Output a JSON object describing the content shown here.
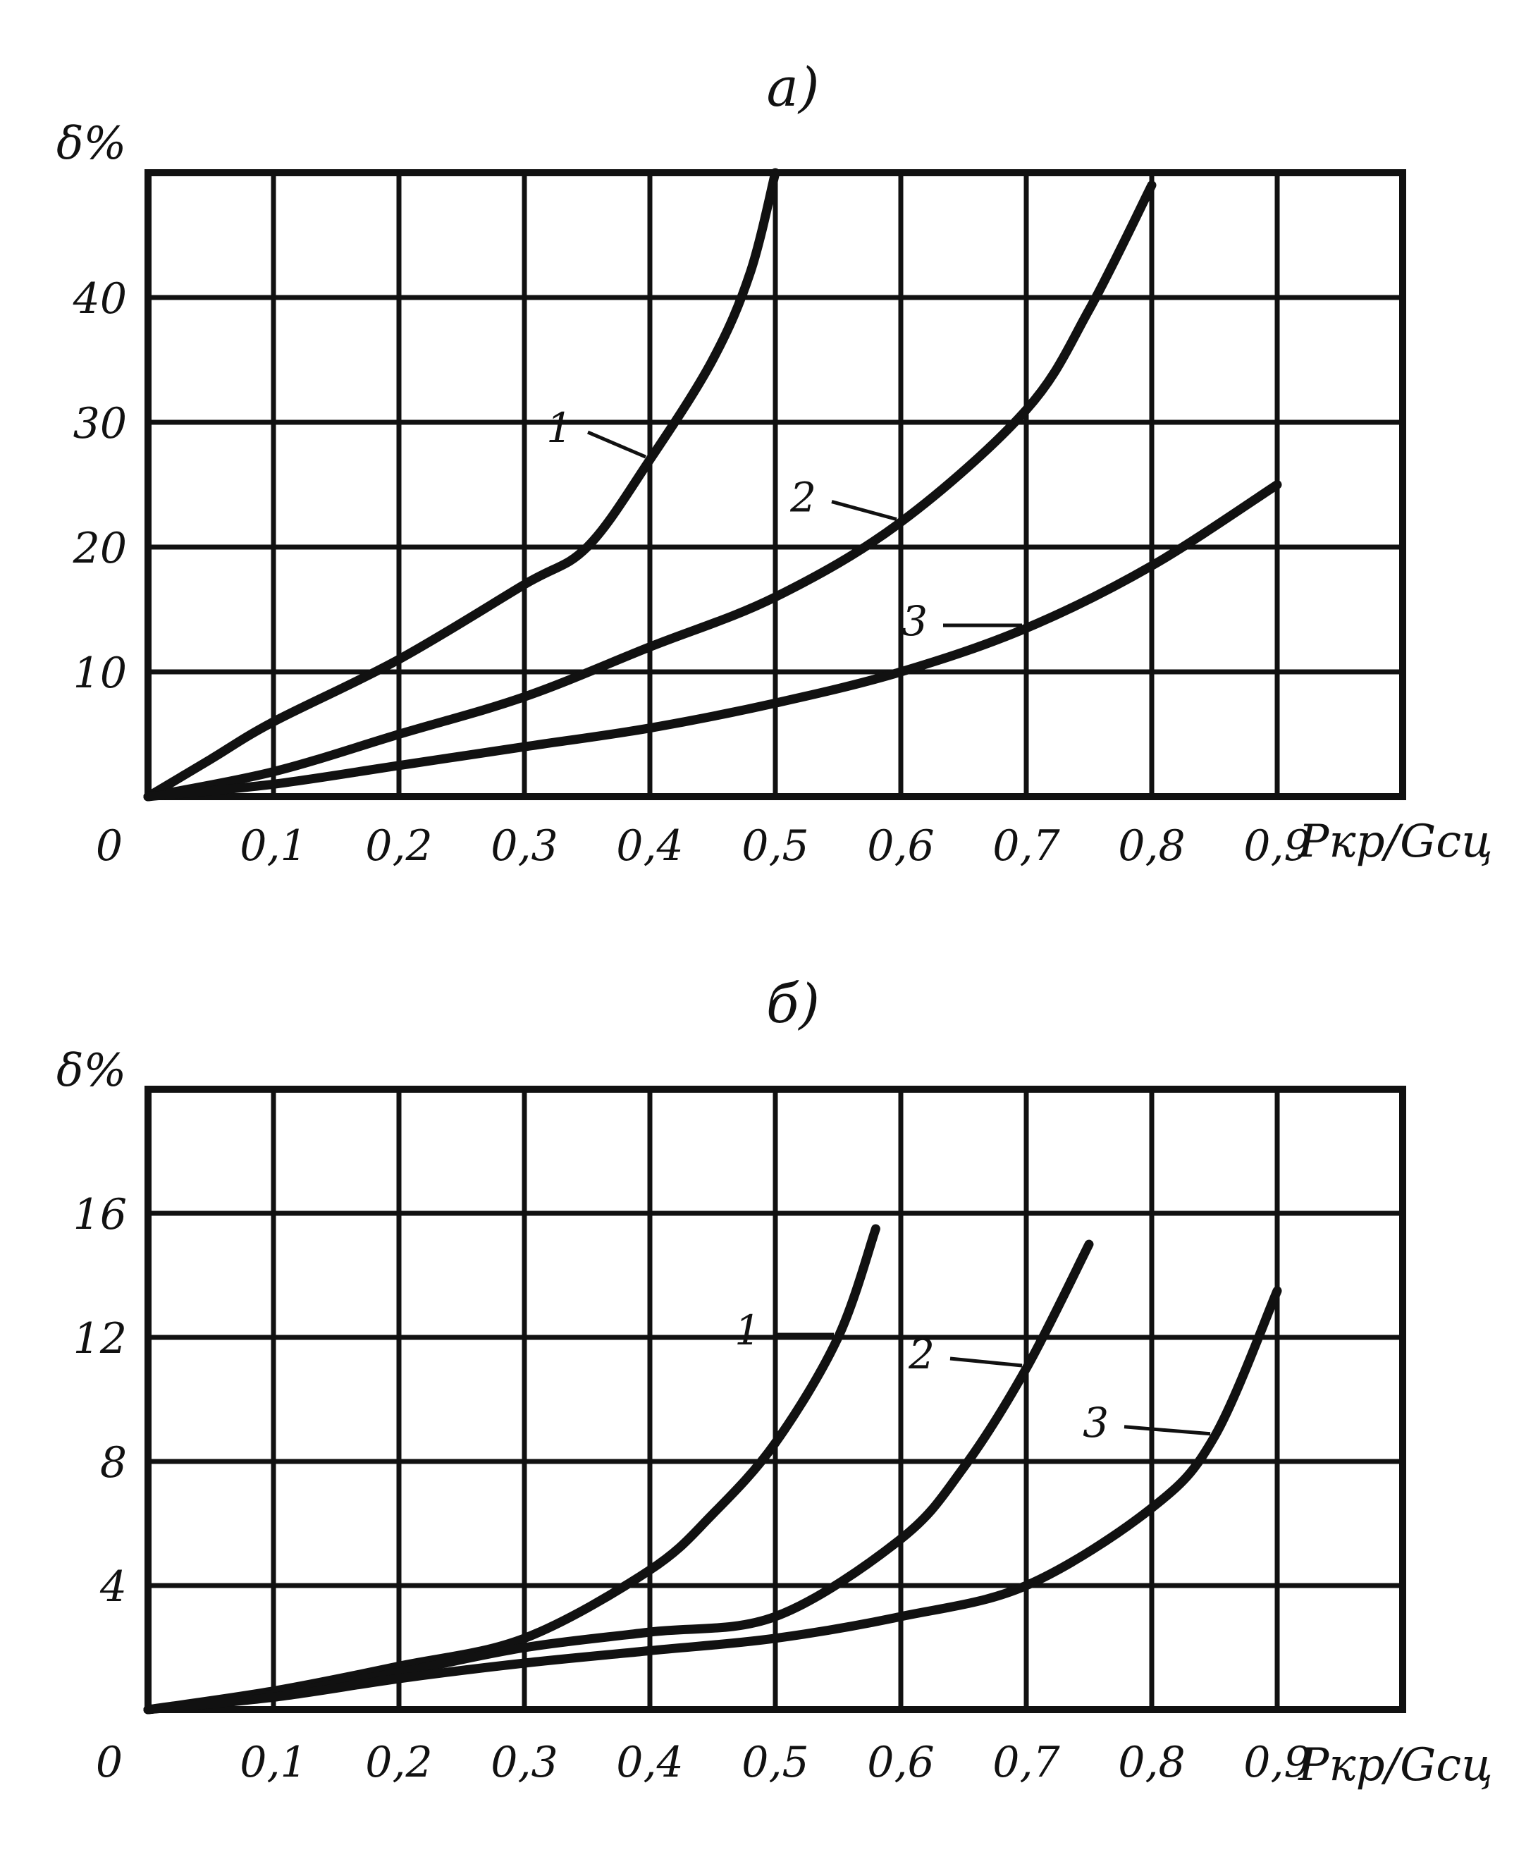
{
  "chart_data": [
    {
      "type": "line",
      "panel_label": "а)",
      "ylabel": "δ%",
      "xlabel": "Pкр/Gсц",
      "xlim": [
        0,
        1.0
      ],
      "ylim": [
        0,
        50
      ],
      "x_ticks": [
        "0",
        "0,1",
        "0,2",
        "0,3",
        "0,4",
        "0,5",
        "0,6",
        "0,7",
        "0,8",
        "0,9"
      ],
      "y_ticks": [
        "10",
        "20",
        "30",
        "40"
      ],
      "grid": true,
      "series": [
        {
          "name": "1",
          "x": [
            0,
            0.05,
            0.1,
            0.2,
            0.3,
            0.35,
            0.4,
            0.45,
            0.48,
            0.5
          ],
          "y": [
            0,
            3,
            6,
            11,
            17,
            20,
            27,
            35,
            42,
            50
          ]
        },
        {
          "name": "2",
          "x": [
            0,
            0.1,
            0.2,
            0.3,
            0.4,
            0.5,
            0.6,
            0.7,
            0.75,
            0.8
          ],
          "y": [
            0,
            2,
            5,
            8,
            12,
            16,
            22,
            31,
            39,
            49
          ]
        },
        {
          "name": "3",
          "x": [
            0,
            0.1,
            0.2,
            0.3,
            0.4,
            0.5,
            0.6,
            0.7,
            0.8,
            0.9
          ],
          "y": [
            0,
            1,
            2.5,
            4,
            5.5,
            7.5,
            10,
            13.5,
            18.5,
            25
          ]
        }
      ]
    },
    {
      "type": "line",
      "panel_label": "б)",
      "ylabel": "δ%",
      "xlabel": "Pкр/Gсц",
      "xlim": [
        0,
        1.0
      ],
      "ylim": [
        0,
        20
      ],
      "x_ticks": [
        "0",
        "0,1",
        "0,2",
        "0,3",
        "0,4",
        "0,5",
        "0,6",
        "0,7",
        "0,8",
        "0,9"
      ],
      "y_ticks": [
        "4",
        "8",
        "12",
        "16"
      ],
      "grid": true,
      "series": [
        {
          "name": "1",
          "x": [
            0,
            0.1,
            0.2,
            0.3,
            0.4,
            0.45,
            0.5,
            0.55,
            0.58
          ],
          "y": [
            0,
            0.6,
            1.4,
            2.3,
            4.5,
            6.3,
            8.6,
            12,
            15.5
          ]
        },
        {
          "name": "2",
          "x": [
            0,
            0.1,
            0.2,
            0.3,
            0.4,
            0.5,
            0.6,
            0.65,
            0.7,
            0.75
          ],
          "y": [
            0,
            0.5,
            1.2,
            2,
            2.5,
            3,
            5.5,
            7.8,
            11,
            15
          ]
        },
        {
          "name": "3",
          "x": [
            0,
            0.1,
            0.2,
            0.3,
            0.4,
            0.5,
            0.6,
            0.7,
            0.8,
            0.85,
            0.9
          ],
          "y": [
            0,
            0.4,
            1,
            1.5,
            1.9,
            2.3,
            3,
            4,
            6.5,
            8.8,
            13.5
          ]
        }
      ]
    }
  ]
}
